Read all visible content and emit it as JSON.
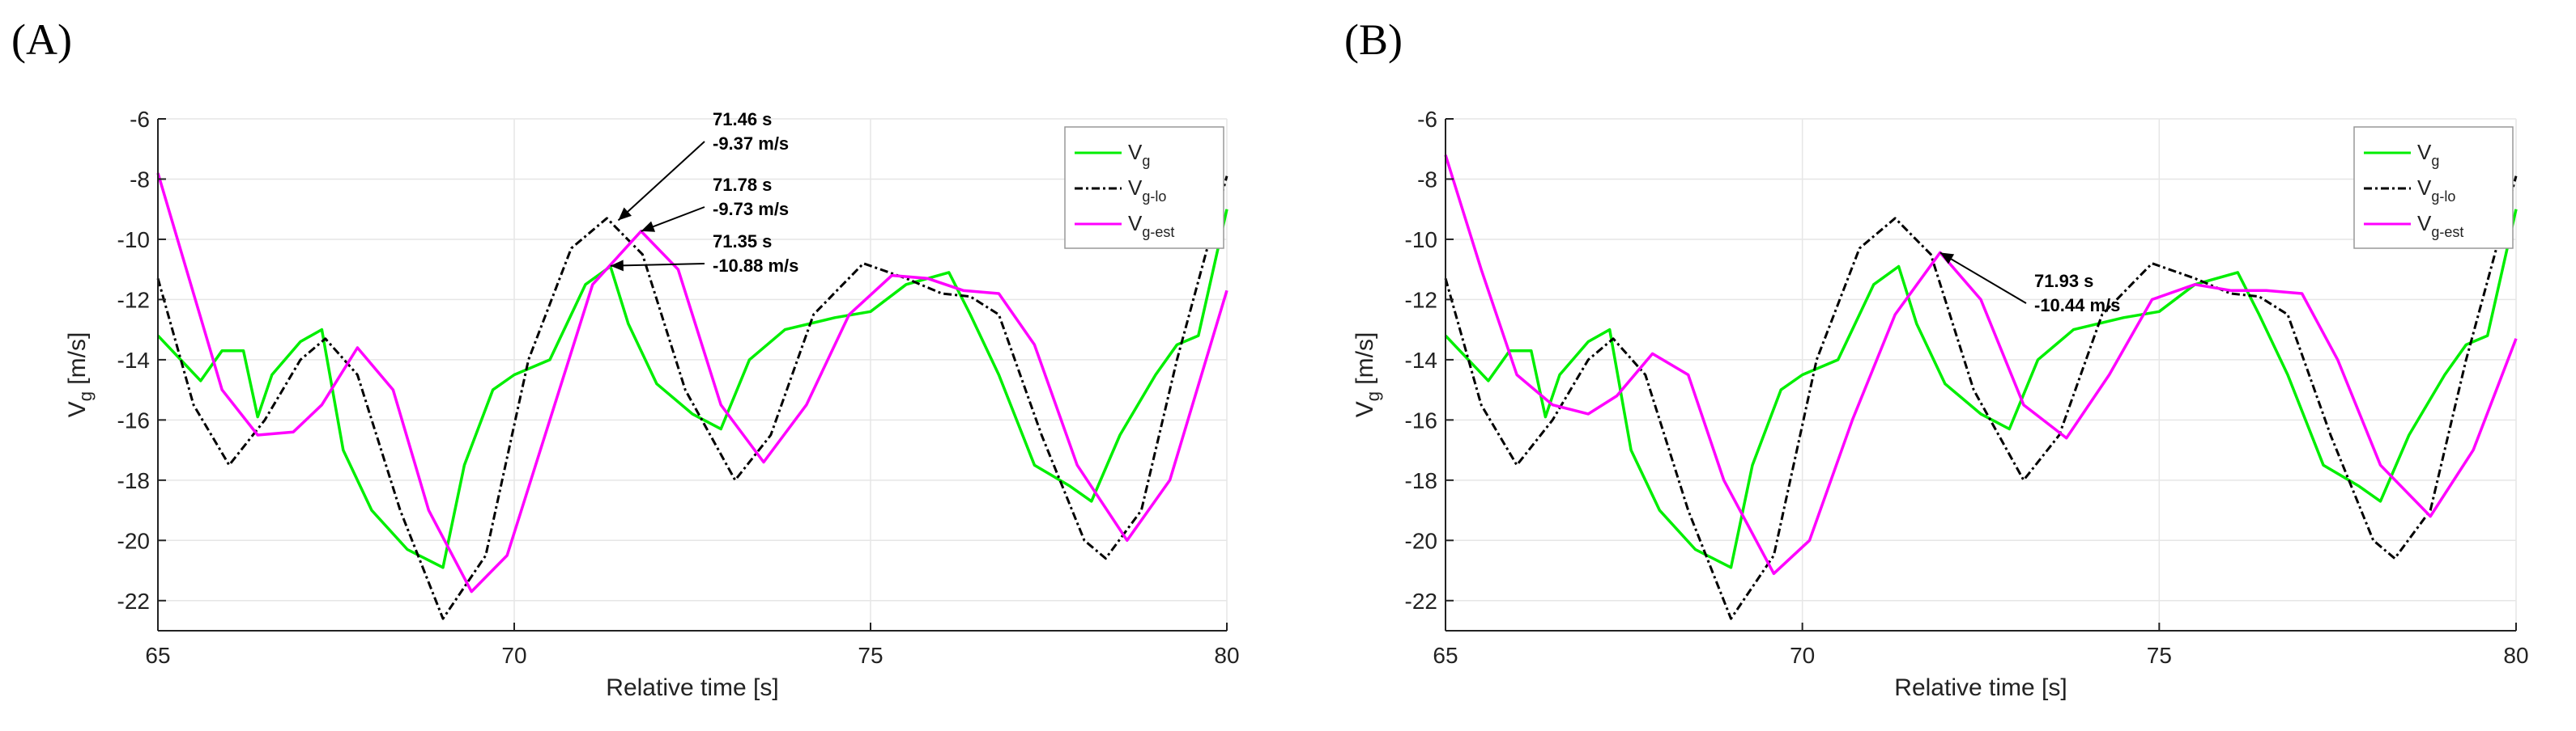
{
  "chart_data": [
    {
      "panel_label": "(A)",
      "type": "line",
      "xlabel": "Relative time [s]",
      "ylabel": "V",
      "ylabel_sub": "g",
      "ylabel_unit": " [m/s]",
      "xlim": [
        65,
        80
      ],
      "ylim": [
        -23,
        -6
      ],
      "xticks": [
        65,
        70,
        75,
        80
      ],
      "yticks": [
        -6,
        -8,
        -10,
        -12,
        -14,
        -16,
        -18,
        -20,
        -22
      ],
      "grid": true,
      "legend_position": "top-right",
      "series": [
        {
          "name": "V",
          "sub": "g",
          "color": "#00ee00",
          "dash": "solid",
          "x": [
            65,
            65.6,
            65.9,
            66.2,
            66.4,
            66.6,
            67.0,
            67.3,
            67.6,
            68.0,
            68.5,
            69.0,
            69.3,
            69.7,
            70.0,
            70.5,
            71.0,
            71.35,
            71.6,
            72.0,
            72.5,
            72.9,
            73.3,
            73.8,
            74.5,
            75.0,
            75.5,
            76.1,
            76.4,
            76.8,
            77.3,
            77.8,
            78.1,
            78.5,
            79.0,
            79.3,
            79.6,
            80
          ],
          "y": [
            -13.2,
            -14.7,
            -13.7,
            -13.7,
            -15.9,
            -14.5,
            -13.4,
            -13.0,
            -17.0,
            -19.0,
            -20.3,
            -20.9,
            -17.5,
            -15.0,
            -14.5,
            -14.0,
            -11.5,
            -10.9,
            -12.8,
            -14.8,
            -15.8,
            -16.3,
            -14.0,
            -13.0,
            -12.6,
            -12.4,
            -11.5,
            -11.1,
            -12.5,
            -14.5,
            -17.5,
            -18.2,
            -18.7,
            -16.5,
            -14.5,
            -13.5,
            -13.2,
            -9.0
          ]
        },
        {
          "name": "V",
          "sub": "g-lo",
          "color": "#000000",
          "dash": "dashdot",
          "x": [
            65,
            65.5,
            66.0,
            66.5,
            67.0,
            67.35,
            67.8,
            68.4,
            69.0,
            69.6,
            70.2,
            70.8,
            71.3,
            71.8,
            72.4,
            73.1,
            73.6,
            74.2,
            74.9,
            75.5,
            76.0,
            76.4,
            76.8,
            77.4,
            78.0,
            78.3,
            78.8,
            79.3,
            80
          ],
          "y": [
            -11.3,
            -15.5,
            -17.5,
            -16.0,
            -14.0,
            -13.3,
            -14.5,
            -19.0,
            -22.6,
            -20.5,
            -14.0,
            -10.3,
            -9.3,
            -10.5,
            -15.0,
            -18.0,
            -16.5,
            -12.5,
            -10.8,
            -11.3,
            -11.8,
            -11.9,
            -12.5,
            -16.5,
            -20.0,
            -20.6,
            -19.0,
            -14.0,
            -7.9
          ]
        },
        {
          "name": "V",
          "sub": "g-est",
          "color": "#ff00ff",
          "dash": "solid",
          "x": [
            65,
            65.4,
            65.9,
            66.4,
            66.9,
            67.3,
            67.8,
            68.3,
            68.8,
            69.4,
            69.9,
            70.5,
            71.1,
            71.78,
            72.3,
            72.9,
            73.5,
            74.1,
            74.7,
            75.3,
            75.8,
            76.3,
            76.8,
            77.3,
            77.9,
            78.6,
            79.2,
            80
          ],
          "y": [
            -7.8,
            -11.0,
            -15.0,
            -16.5,
            -16.4,
            -15.5,
            -13.6,
            -15.0,
            -19.0,
            -21.7,
            -20.5,
            -16.0,
            -11.5,
            -9.73,
            -11.0,
            -15.5,
            -17.4,
            -15.5,
            -12.5,
            -11.2,
            -11.3,
            -11.7,
            -11.8,
            -13.5,
            -17.5,
            -20.0,
            -18.0,
            -11.7
          ]
        }
      ],
      "annotations": [
        {
          "line1": "71.46 s",
          "line2": "-9.37 m/s",
          "point": [
            71.46,
            -9.37
          ]
        },
        {
          "line1": "71.78 s",
          "line2": "-9.73 m/s",
          "point": [
            71.78,
            -9.73
          ]
        },
        {
          "line1": "71.35 s",
          "line2": "-10.88 m/s",
          "point": [
            71.35,
            -10.88
          ]
        }
      ]
    },
    {
      "panel_label": "(B)",
      "type": "line",
      "xlabel": "Relative time [s]",
      "ylabel": "V",
      "ylabel_sub": "g",
      "ylabel_unit": " [m/s]",
      "xlim": [
        65,
        80
      ],
      "ylim": [
        -23,
        -6
      ],
      "xticks": [
        65,
        70,
        75,
        80
      ],
      "yticks": [
        -6,
        -8,
        -10,
        -12,
        -14,
        -16,
        -18,
        -20,
        -22
      ],
      "grid": true,
      "legend_position": "top-right",
      "series": [
        {
          "name": "V",
          "sub": "g",
          "color": "#00ee00",
          "dash": "solid",
          "x": [
            65,
            65.6,
            65.9,
            66.2,
            66.4,
            66.6,
            67.0,
            67.3,
            67.6,
            68.0,
            68.5,
            69.0,
            69.3,
            69.7,
            70.0,
            70.5,
            71.0,
            71.35,
            71.6,
            72.0,
            72.5,
            72.9,
            73.3,
            73.8,
            74.5,
            75.0,
            75.5,
            76.1,
            76.4,
            76.8,
            77.3,
            77.8,
            78.1,
            78.5,
            79.0,
            79.3,
            79.6,
            80
          ],
          "y": [
            -13.2,
            -14.7,
            -13.7,
            -13.7,
            -15.9,
            -14.5,
            -13.4,
            -13.0,
            -17.0,
            -19.0,
            -20.3,
            -20.9,
            -17.5,
            -15.0,
            -14.5,
            -14.0,
            -11.5,
            -10.9,
            -12.8,
            -14.8,
            -15.8,
            -16.3,
            -14.0,
            -13.0,
            -12.6,
            -12.4,
            -11.5,
            -11.1,
            -12.5,
            -14.5,
            -17.5,
            -18.2,
            -18.7,
            -16.5,
            -14.5,
            -13.5,
            -13.2,
            -9.0
          ]
        },
        {
          "name": "V",
          "sub": "g-lo",
          "color": "#000000",
          "dash": "dashdot",
          "x": [
            65,
            65.5,
            66.0,
            66.5,
            67.0,
            67.35,
            67.8,
            68.4,
            69.0,
            69.6,
            70.2,
            70.8,
            71.3,
            71.8,
            72.4,
            73.1,
            73.6,
            74.2,
            74.9,
            75.5,
            76.0,
            76.4,
            76.8,
            77.4,
            78.0,
            78.3,
            78.8,
            79.3,
            80
          ],
          "y": [
            -11.3,
            -15.5,
            -17.5,
            -16.0,
            -14.0,
            -13.3,
            -14.5,
            -19.0,
            -22.6,
            -20.5,
            -14.0,
            -10.3,
            -9.3,
            -10.5,
            -15.0,
            -18.0,
            -16.5,
            -12.5,
            -10.8,
            -11.3,
            -11.8,
            -11.9,
            -12.5,
            -16.5,
            -20.0,
            -20.6,
            -19.0,
            -14.0,
            -7.9
          ]
        },
        {
          "name": "V",
          "sub": "g-est",
          "color": "#ff00ff",
          "dash": "solid",
          "x": [
            65,
            65.5,
            66.0,
            66.5,
            67.0,
            67.4,
            67.9,
            68.4,
            68.9,
            69.6,
            70.1,
            70.7,
            71.3,
            71.93,
            72.5,
            73.1,
            73.7,
            74.3,
            74.9,
            75.5,
            76.0,
            76.5,
            77.0,
            77.5,
            78.1,
            78.8,
            79.4,
            80
          ],
          "y": [
            -7.2,
            -11.0,
            -14.5,
            -15.5,
            -15.8,
            -15.2,
            -13.8,
            -14.5,
            -18.0,
            -21.1,
            -20.0,
            -16.0,
            -12.5,
            -10.44,
            -12.0,
            -15.5,
            -16.6,
            -14.5,
            -12.0,
            -11.5,
            -11.7,
            -11.7,
            -11.8,
            -14.0,
            -17.5,
            -19.2,
            -17.0,
            -13.3
          ]
        }
      ],
      "annotations": [
        {
          "line1": "71.93 s",
          "line2": "-10.44 m/s",
          "point": [
            71.93,
            -10.44
          ]
        }
      ]
    }
  ]
}
